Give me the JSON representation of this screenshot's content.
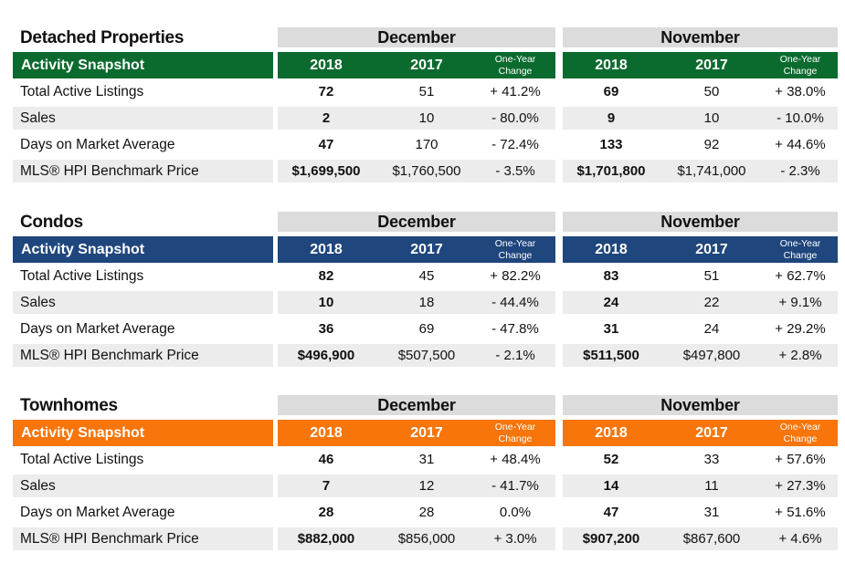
{
  "sections": [
    {
      "title": "Detached Properties",
      "color": "#0b6b2e",
      "snapshot_label": "Activity Snapshot",
      "groups": [
        {
          "month": "December",
          "year_a": "2018",
          "year_b": "2017",
          "change": "One-Year\nChange"
        },
        {
          "month": "November",
          "year_a": "2018",
          "year_b": "2017",
          "change": "One-Year\nChange"
        }
      ],
      "rows": [
        {
          "metric": "Total Active Listings",
          "v": [
            "72",
            "51",
            "+ 41.2%",
            "69",
            "50",
            "+ 38.0%"
          ]
        },
        {
          "metric": "Sales",
          "v": [
            "2",
            "10",
            "- 80.0%",
            "9",
            "10",
            "- 10.0%"
          ]
        },
        {
          "metric": "Days on Market Average",
          "v": [
            "47",
            "170",
            "- 72.4%",
            "133",
            "92",
            "+ 44.6%"
          ]
        },
        {
          "metric": "MLS® HPI Benchmark Price",
          "v": [
            "$1,699,500",
            "$1,760,500",
            "- 3.5%",
            "$1,701,800",
            "$1,741,000",
            "- 2.3%"
          ]
        }
      ]
    },
    {
      "title": "Condos",
      "color": "#1f467d",
      "snapshot_label": "Activity Snapshot",
      "groups": [
        {
          "month": "December",
          "year_a": "2018",
          "year_b": "2017",
          "change": "One-Year\nChange"
        },
        {
          "month": "November",
          "year_a": "2018",
          "year_b": "2017",
          "change": "One-Year\nChange"
        }
      ],
      "rows": [
        {
          "metric": "Total Active Listings",
          "v": [
            "82",
            "45",
            "+ 82.2%",
            "83",
            "51",
            "+ 62.7%"
          ]
        },
        {
          "metric": "Sales",
          "v": [
            "10",
            "18",
            "- 44.4%",
            "24",
            "22",
            "+ 9.1%"
          ]
        },
        {
          "metric": "Days on Market Average",
          "v": [
            "36",
            "69",
            "- 47.8%",
            "31",
            "24",
            "+ 29.2%"
          ]
        },
        {
          "metric": "MLS® HPI Benchmark Price",
          "v": [
            "$496,900",
            "$507,500",
            "- 2.1%",
            "$511,500",
            "$497,800",
            "+ 2.8%"
          ]
        }
      ]
    },
    {
      "title": "Townhomes",
      "color": "#f7750a",
      "snapshot_label": "Activity Snapshot",
      "groups": [
        {
          "month": "December",
          "year_a": "2018",
          "year_b": "2017",
          "change": "One-Year\nChange"
        },
        {
          "month": "November",
          "year_a": "2018",
          "year_b": "2017",
          "change": "One-Year\nChange"
        }
      ],
      "rows": [
        {
          "metric": "Total Active Listings",
          "v": [
            "46",
            "31",
            "+ 48.4%",
            "52",
            "33",
            "+ 57.6%"
          ]
        },
        {
          "metric": "Sales",
          "v": [
            "7",
            "12",
            "- 41.7%",
            "14",
            "11",
            "+ 27.3%"
          ]
        },
        {
          "metric": "Days on Market Average",
          "v": [
            "28",
            "28",
            "0.0%",
            "47",
            "31",
            "+ 51.6%"
          ]
        },
        {
          "metric": "MLS® HPI Benchmark Price",
          "v": [
            "$882,000",
            "$856,000",
            "+ 3.0%",
            "$907,200",
            "$867,600",
            "+ 4.6%"
          ]
        }
      ]
    }
  ]
}
